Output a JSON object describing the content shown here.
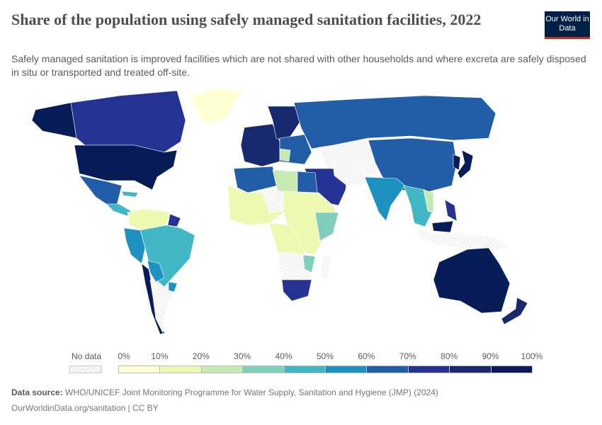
{
  "header": {
    "title": "Share of the population using safely managed sanitation facilities, 2022",
    "subtitle": "Safely managed sanitation is improved facilities which are not shared with other households and where excreta are safely disposed in situ or transported and treated off-site.",
    "logo_text": "Our World in Data"
  },
  "legend": {
    "no_data_label": "No data",
    "ticks": [
      "0%",
      "10%",
      "20%",
      "30%",
      "40%",
      "50%",
      "60%",
      "70%",
      "80%",
      "90%",
      "100%"
    ],
    "bins": [
      "#ffffd4",
      "#edf8b1",
      "#c7e9b4",
      "#7fcdbb",
      "#41b6c4",
      "#1d91c0",
      "#225ea8",
      "#253494",
      "#172a70",
      "#081d58"
    ]
  },
  "footer": {
    "source_label": "Data source:",
    "source_text": "WHO/UNICEF Joint Monitoring Programme for Water Supply, Sanitation and Hygiene (JMP) (2024)",
    "url_license": "OurWorldinData.org/sanitation | CC BY"
  }
}
